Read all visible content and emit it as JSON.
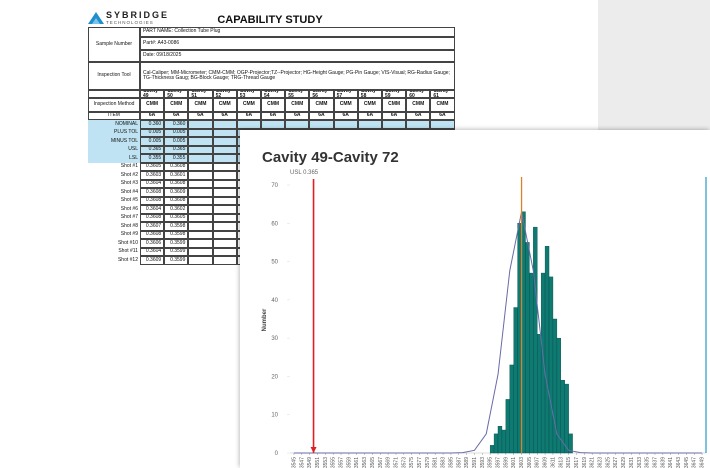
{
  "document": {
    "logo": "SYBRIDGE",
    "logo_sub": "TECHNOLOGIES",
    "title": "CAPABILITY STUDY",
    "sample_label": "Sample Number",
    "part_name": "PART NAME:  Collection Tube Plug",
    "part_no": "Part#: A43-0086",
    "date": "Date:  09/18/2025",
    "tool_label": "Inspection Tool",
    "tool_text": "Cal-Caliper; MM-Micrometer; CMM-CMM; OGP-Projector;TZ--Projector; HG-Height Gauge; PG-Pin Gauge; VIS-Visual; RG-Radius Gauge; TG-Thickness Gaug; BG-Block Gauge; TRG-Thread Gauge",
    "table": {
      "header": [
        "Cavity 49",
        "Cavity 50",
        "Cavity 51",
        "Cavity 52",
        "Cavity 53",
        "Cavity 54",
        "Cavity 55",
        "Cavity 56",
        "Cavity 57",
        "Cavity 58",
        "Cavity 59",
        "Cavity 60",
        "Cavity 61"
      ],
      "rows": [
        [
          "Inspection Method",
          "CMM",
          "CMM",
          "CMM",
          "CMM",
          "CMM",
          "CMM",
          "CMM",
          "CMM",
          "CMM",
          "CMM",
          "CMM",
          "CMM",
          "CMM"
        ],
        [
          "ITEM",
          "6A",
          "6A",
          "6A",
          "6A",
          "6A",
          "6A",
          "6A",
          "6A",
          "6A",
          "6A",
          "6A",
          "6A",
          "6A"
        ],
        [
          "NOMINAL",
          "0.360",
          "0.360"
        ],
        [
          "PLUS TOL",
          "0.005",
          "0.005"
        ],
        [
          "MINUS TOL",
          "0.005",
          "0.005"
        ],
        [
          "USL",
          "0.365",
          "0.365"
        ],
        [
          "LSL",
          "0.355",
          "0.355"
        ],
        [
          "Shot #1",
          "0.3605",
          "0.3608"
        ],
        [
          "Shot #2",
          "0.3603",
          "0.3601"
        ],
        [
          "Shot #3",
          "0.3604",
          "0.3608"
        ],
        [
          "Shot #4",
          "0.3608",
          "0.3609"
        ],
        [
          "Shot #5",
          "0.3608",
          "0.3608"
        ],
        [
          "Shot #6",
          "0.3604",
          "0.3602"
        ],
        [
          "Shot #7",
          "0.3608",
          "0.3605"
        ],
        [
          "Shot #8",
          "0.3607",
          "0.3598"
        ],
        [
          "Shot #9",
          "0.3608",
          "0.3598"
        ],
        [
          "Shot #10",
          "0.3606",
          "0.3599"
        ],
        [
          "Shot #11",
          "0.3604",
          "0.3599"
        ],
        [
          "Shot #12",
          "0.3609",
          "0.3599"
        ]
      ]
    }
  },
  "chart_data": {
    "type": "histogram",
    "title": "Cavity 49-Cavity 72",
    "y_label": "Number",
    "annotation": "USL  0.365",
    "bins": [
      0.3595,
      0.3596,
      0.3597,
      0.3598,
      0.3599,
      0.36,
      0.3601,
      0.3602,
      0.3603,
      0.3604,
      0.3605,
      0.3606,
      0.3607,
      0.3608,
      0.3609,
      0.361,
      0.3611,
      0.3612,
      0.3613,
      0.3614,
      0.3615,
      0.3616
    ],
    "values": [
      2,
      5,
      7,
      6,
      14,
      23,
      38,
      60,
      63,
      55,
      47,
      59,
      31,
      47,
      54,
      46,
      35,
      30,
      19,
      18,
      5
    ],
    "color": "#0e7a72",
    "curve": {
      "color": "#6a6aa8",
      "x": [
        0.3545,
        0.3585,
        0.3588,
        0.3591,
        0.3594,
        0.3597,
        0.36,
        0.3603,
        0.3606,
        0.3609,
        0.3612,
        0.3615,
        0.3618,
        0.3621,
        0.3649
      ],
      "y": [
        0,
        0,
        0.1,
        0.7,
        5,
        20.5,
        47.6,
        63,
        47.6,
        20.5,
        5,
        0.7,
        0.1,
        0,
        0
      ]
    },
    "lines": [
      {
        "x": 0.355,
        "color": "#e02020"
      },
      {
        "x": 0.3603,
        "color": "#d9822b"
      },
      {
        "x": 0.365,
        "color": "#3aa0d0"
      }
    ],
    "xlim": [
      0.3544,
      0.365
    ],
    "xticks": [
      0.3545,
      0.3547,
      0.3549,
      0.3551,
      0.3553,
      0.3555,
      0.3557,
      0.3559,
      0.3561,
      0.3563,
      0.3565,
      0.3567,
      0.3569,
      0.3571,
      0.3573,
      0.3575,
      0.3577,
      0.3579,
      0.3581,
      0.3583,
      0.3585,
      0.3587,
      0.3589,
      0.3591,
      0.3593,
      0.3595,
      0.3597,
      0.3599,
      0.3601,
      0.3603,
      0.3605,
      0.3607,
      0.3609,
      0.3611,
      0.3613,
      0.3615,
      0.3617,
      0.3619,
      0.3621,
      0.3623,
      0.3625,
      0.3627,
      0.3629,
      0.3631,
      0.3633,
      0.3635,
      0.3637,
      0.3639,
      0.3641,
      0.3643,
      0.3645,
      0.3647,
      0.3649
    ],
    "ylim": [
      0,
      70
    ],
    "yticks": [
      0,
      10,
      20,
      30,
      40,
      50,
      60,
      70
    ]
  }
}
